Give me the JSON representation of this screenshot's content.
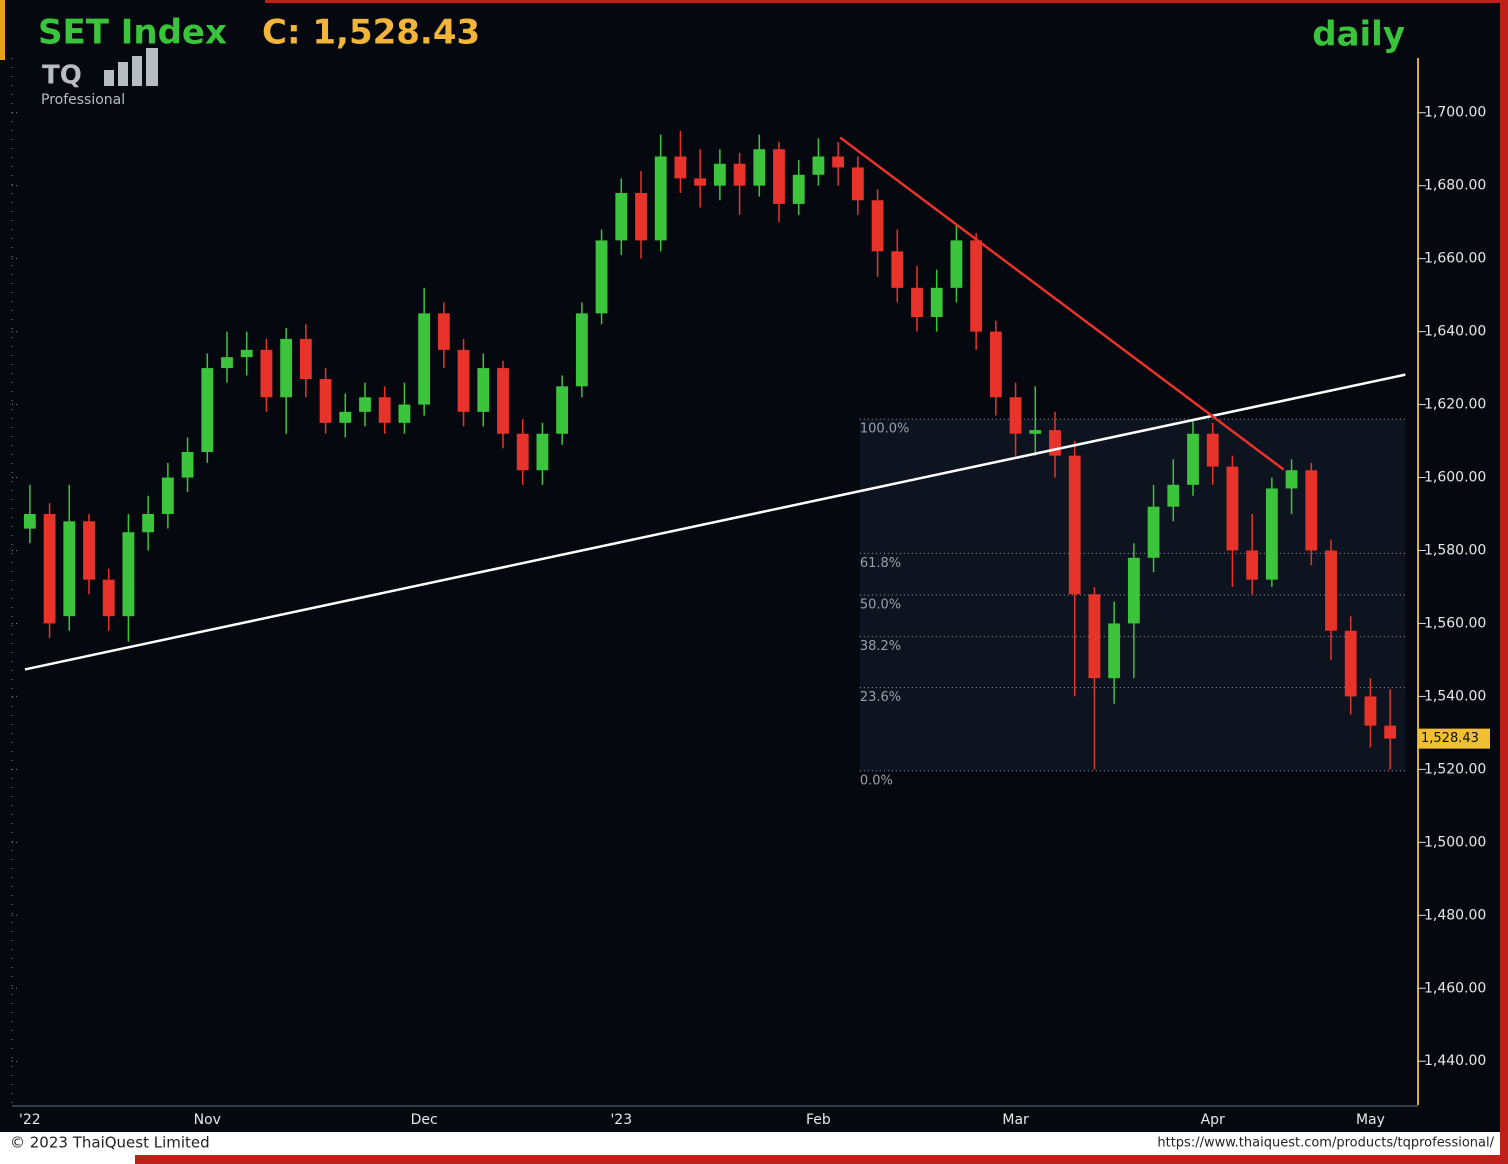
{
  "chart_data": {
    "type": "candlestick",
    "title": "SET Index",
    "close_label": "C: 1,528.43",
    "period": "daily",
    "logo": "TQ",
    "logo_sub": "Professional",
    "copyright": "© 2023 ThaiQuest Limited",
    "url": "https://www.thaiquest.com/products/tqprofessional/",
    "up_color": "#3cc43c",
    "down_color": "#e8332a",
    "categories": [
      "'22",
      null,
      null,
      null,
      null,
      null,
      null,
      null,
      null,
      "Nov",
      null,
      null,
      null,
      null,
      null,
      null,
      null,
      null,
      null,
      null,
      "Dec",
      null,
      null,
      null,
      null,
      null,
      null,
      null,
      null,
      null,
      "'23",
      null,
      null,
      null,
      null,
      null,
      null,
      null,
      null,
      null,
      "Feb",
      null,
      null,
      null,
      null,
      null,
      null,
      null,
      null,
      null,
      "Mar",
      null,
      null,
      null,
      null,
      null,
      null,
      null,
      null,
      null,
      "Apr",
      null,
      null,
      null,
      null,
      null,
      null,
      null,
      "May",
      null
    ],
    "open": [
      1586,
      1590,
      1562,
      1588,
      1572,
      1562,
      1585,
      1590,
      1600,
      1607,
      1630,
      1633,
      1635,
      1622,
      1638,
      1627,
      1615,
      1618,
      1622,
      1615,
      1620,
      1645,
      1635,
      1618,
      1630,
      1612,
      1602,
      1612,
      1625,
      1645,
      1665,
      1678,
      1665,
      1688,
      1682,
      1680,
      1686,
      1680,
      1690,
      1675,
      1683,
      1688,
      1685,
      1676,
      1662,
      1652,
      1644,
      1652,
      1665,
      1640,
      1622,
      1612,
      1613,
      1606,
      1568,
      1545,
      1560,
      1578,
      1592,
      1598,
      1612,
      1603,
      1580,
      1572,
      1597,
      1602,
      1580,
      1558,
      1540,
      1532
    ],
    "high": [
      1598,
      1593,
      1598,
      1590,
      1575,
      1590,
      1595,
      1604,
      1611,
      1634,
      1640,
      1640,
      1638,
      1641,
      1642,
      1630,
      1623,
      1626,
      1625,
      1626,
      1652,
      1648,
      1638,
      1634,
      1632,
      1616,
      1615,
      1628,
      1648,
      1668,
      1682,
      1684,
      1694,
      1695,
      1690,
      1690,
      1689,
      1694,
      1692,
      1687,
      1693,
      1692,
      1688,
      1679,
      1668,
      1658,
      1657,
      1669,
      1667,
      1643,
      1626,
      1625,
      1618,
      1610,
      1570,
      1566,
      1582,
      1598,
      1605,
      1616,
      1615,
      1606,
      1590,
      1600,
      1605,
      1604,
      1583,
      1562,
      1545,
      1542
    ],
    "low": [
      1582,
      1556,
      1558,
      1568,
      1558,
      1555,
      1580,
      1586,
      1596,
      1604,
      1626,
      1628,
      1618,
      1612,
      1622,
      1612,
      1611,
      1614,
      1612,
      1612,
      1617,
      1630,
      1614,
      1614,
      1608,
      1598,
      1598,
      1609,
      1622,
      1642,
      1661,
      1660,
      1662,
      1678,
      1674,
      1676,
      1672,
      1677,
      1670,
      1672,
      1680,
      1680,
      1672,
      1655,
      1648,
      1640,
      1640,
      1648,
      1635,
      1617,
      1606,
      1606,
      1600,
      1540,
      1520,
      1538,
      1545,
      1574,
      1588,
      1595,
      1598,
      1570,
      1568,
      1570,
      1590,
      1576,
      1550,
      1535,
      1526,
      1520
    ],
    "close": [
      1590,
      1560,
      1588,
      1572,
      1562,
      1585,
      1590,
      1600,
      1607,
      1630,
      1633,
      1635,
      1622,
      1638,
      1627,
      1615,
      1618,
      1622,
      1615,
      1620,
      1645,
      1635,
      1618,
      1630,
      1612,
      1602,
      1612,
      1625,
      1645,
      1665,
      1678,
      1665,
      1688,
      1682,
      1680,
      1686,
      1680,
      1690,
      1675,
      1683,
      1688,
      1685,
      1676,
      1662,
      1652,
      1644,
      1652,
      1665,
      1640,
      1622,
      1612,
      1613,
      1606,
      1568,
      1545,
      1560,
      1578,
      1592,
      1598,
      1612,
      1603,
      1580,
      1572,
      1597,
      1602,
      1580,
      1558,
      1540,
      1532,
      1528.43
    ],
    "last_label": {
      "value": 1528.43,
      "label": "1,528.43"
    },
    "ylim": [
      1428,
      1715
    ],
    "yticks": [
      {
        "value": 1440,
        "label": "1,440.00"
      },
      {
        "value": 1460,
        "label": "1,460.00"
      },
      {
        "value": 1480,
        "label": "1,480.00"
      },
      {
        "value": 1500,
        "label": "1,500.00"
      },
      {
        "value": 1520,
        "label": "1,520.00"
      },
      {
        "value": 1540,
        "label": "1,540.00"
      },
      {
        "value": 1560,
        "label": "1,560.00"
      },
      {
        "value": 1580,
        "label": "1,580.00"
      },
      {
        "value": 1600,
        "label": "1,600.00"
      },
      {
        "value": 1620,
        "label": "1,620.00"
      },
      {
        "value": 1640,
        "label": "1,640.00"
      },
      {
        "value": 1660,
        "label": "1,660.00"
      },
      {
        "value": 1680,
        "label": "1,680.00"
      },
      {
        "value": 1700,
        "label": "1,700.00"
      }
    ],
    "trendlines": [
      {
        "color": "#ffffff",
        "x": [
          -0.25,
          69.77
        ],
        "y": [
          1547.4,
          1628.2
        ]
      },
      {
        "color": "#e8332a",
        "x": [
          41.1,
          63.6
        ],
        "y": [
          1693.2,
          1602.2
        ]
      }
    ],
    "fibonacci": {
      "x": [
        42.1,
        69.77
      ],
      "levels": [
        {
          "label": "100.0%",
          "value": 1616
        },
        {
          "label": "61.8%",
          "value": 1579.2
        },
        {
          "label": "50.0%",
          "value": 1567.8
        },
        {
          "label": "38.2%",
          "value": 1556.4
        },
        {
          "label": "23.6%",
          "value": 1542.4
        },
        {
          "label": "0.0%",
          "value": 1519.6
        }
      ]
    }
  }
}
